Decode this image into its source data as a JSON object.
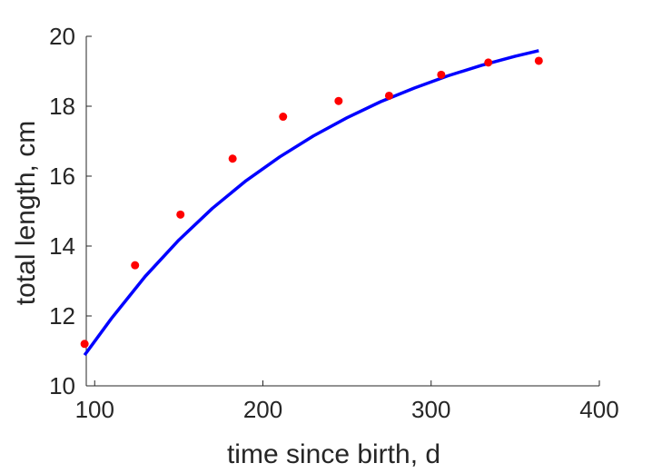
{
  "chart_data": {
    "type": "scatter",
    "title": "",
    "xlabel": "time since birth, d",
    "ylabel": "total length, cm",
    "xlim": [
      95,
      400
    ],
    "ylim": [
      10,
      20
    ],
    "xticks": [
      100,
      200,
      300,
      400
    ],
    "yticks": [
      10,
      12,
      14,
      16,
      18,
      20
    ],
    "xtick_labels": [
      "100",
      "200",
      "300",
      "400"
    ],
    "ytick_labels": [
      "10",
      "12",
      "14",
      "16",
      "18",
      "20"
    ],
    "grid": false,
    "legend": "none",
    "series": [
      {
        "kind": "scatter",
        "color": "#ff0000",
        "x": [
          94,
          124,
          151,
          182,
          212,
          245,
          275,
          306,
          334,
          364
        ],
        "y": [
          11.2,
          13.45,
          14.9,
          16.5,
          17.7,
          18.15,
          18.3,
          18.9,
          19.25,
          19.3
        ]
      },
      {
        "kind": "line",
        "color": "#0000ff",
        "x": [
          94,
          110,
          130,
          150,
          170,
          190,
          210,
          230,
          250,
          270,
          290,
          310,
          330,
          350,
          364
        ],
        "y": [
          10.88,
          11.93,
          13.13,
          14.17,
          15.08,
          15.87,
          16.55,
          17.15,
          17.67,
          18.13,
          18.52,
          18.87,
          19.17,
          19.43,
          19.59
        ]
      }
    ]
  }
}
